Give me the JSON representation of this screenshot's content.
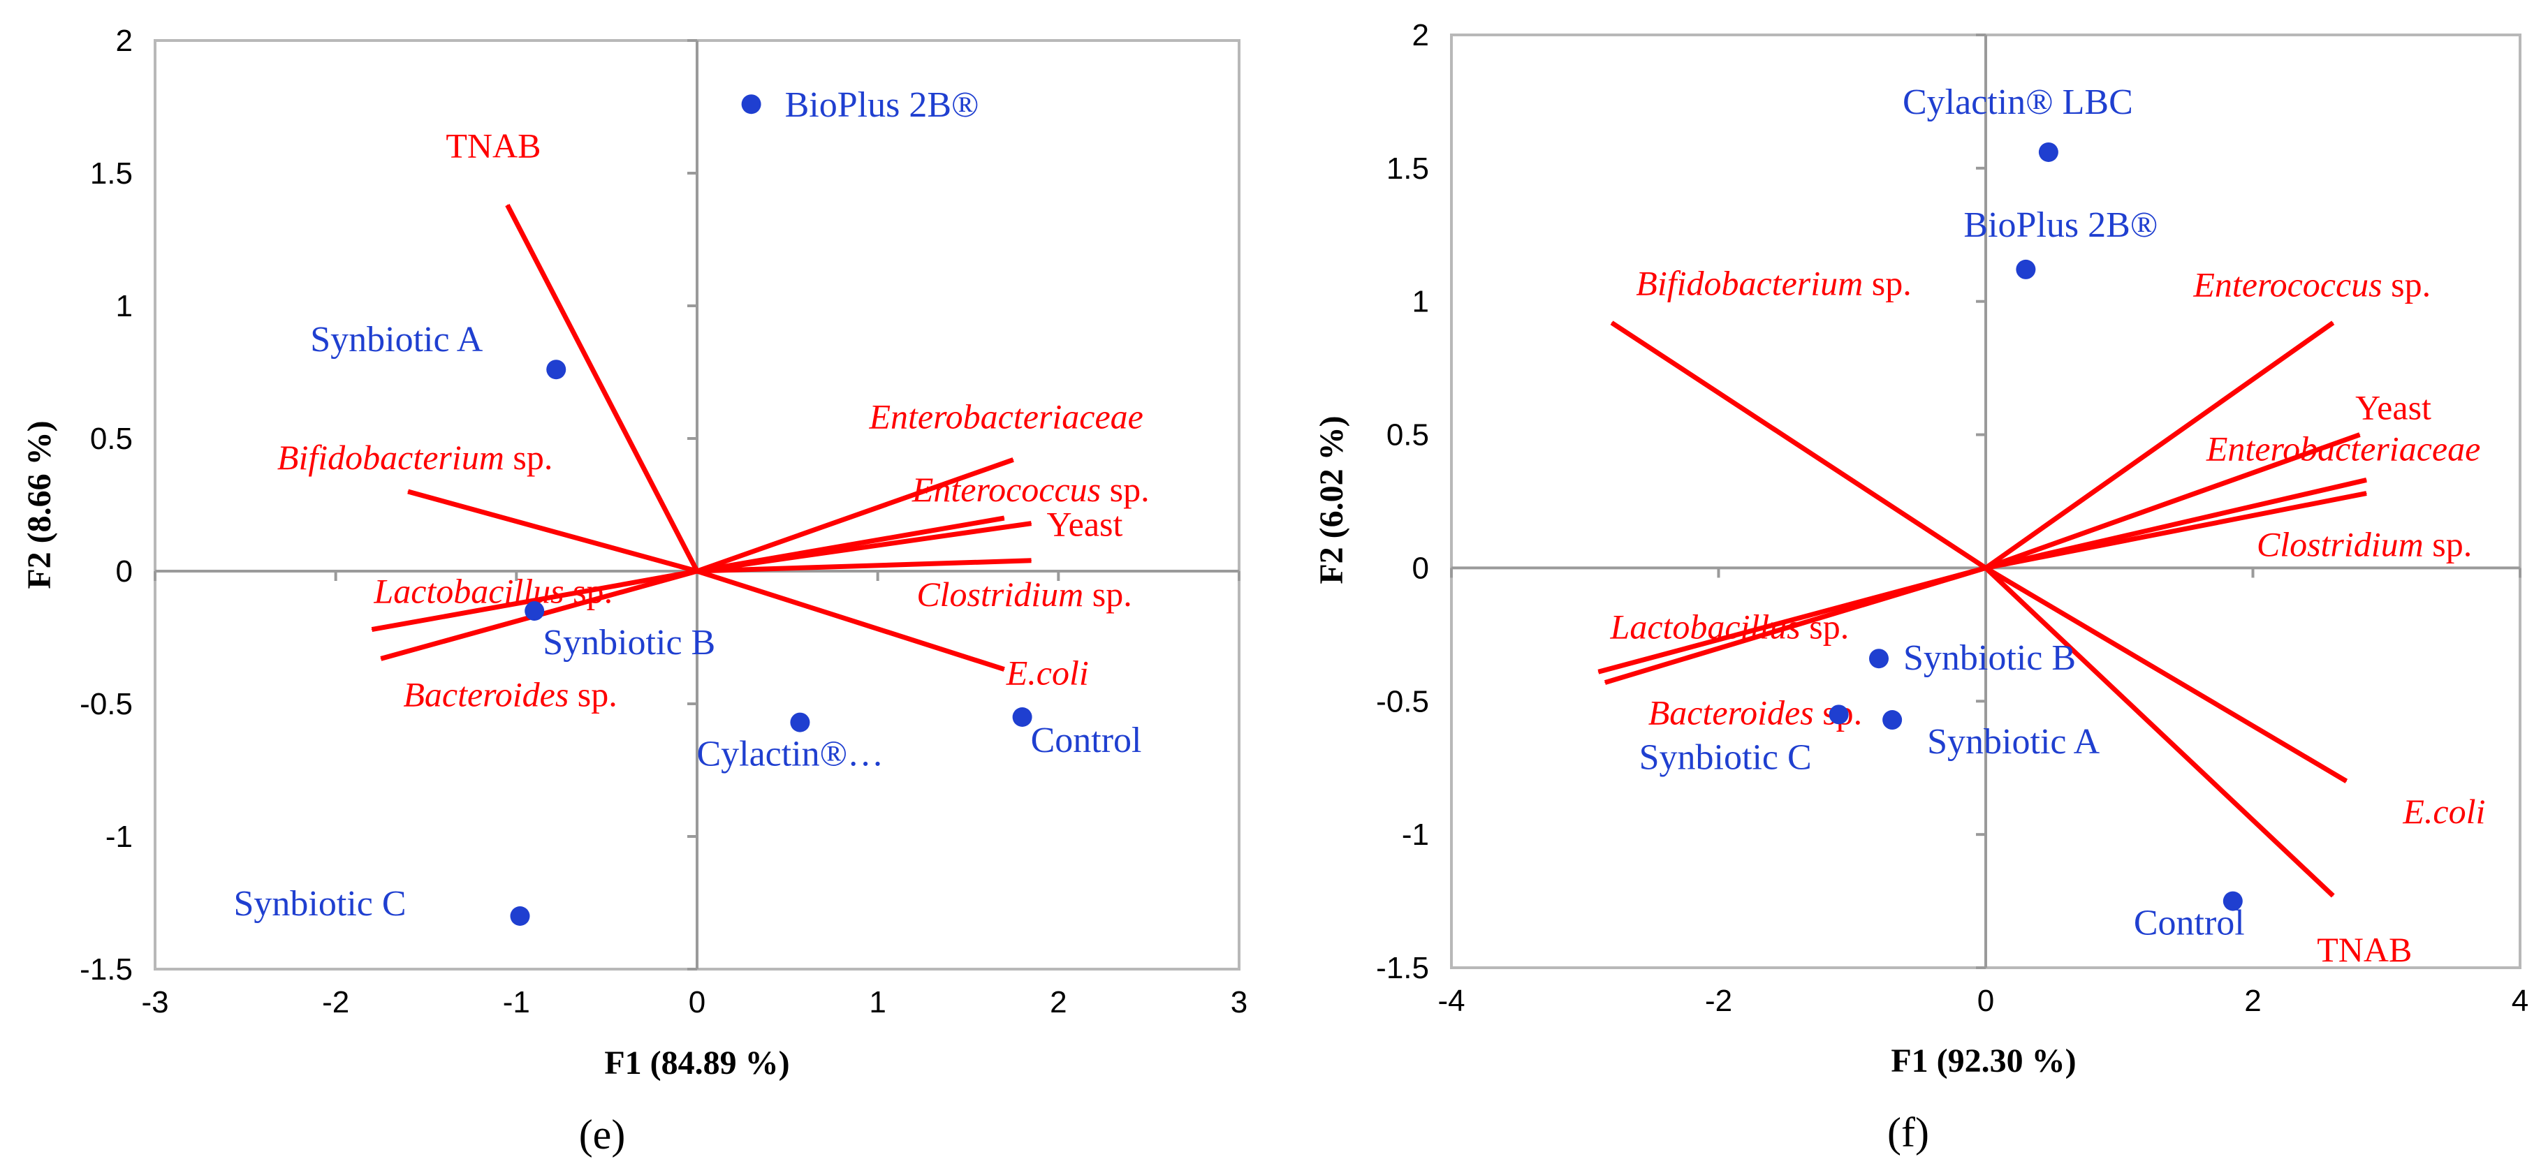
{
  "chart_data": [
    {
      "id": "e",
      "type": "scatter",
      "panel_label": "(e)",
      "xlabel": "F1 (84.89 %)",
      "ylabel": "F2 (8.66 %)",
      "xlim": [
        -3,
        3
      ],
      "ylim": [
        -1.5,
        2
      ],
      "xticks": [
        -3,
        -2,
        -1,
        0,
        1,
        2,
        3
      ],
      "yticks": [
        -1.5,
        -1,
        -0.5,
        0,
        0.5,
        1,
        1.5,
        2
      ],
      "xtick_labels": [
        "-3",
        "-2",
        "-1",
        "0",
        "1",
        "2",
        "3"
      ],
      "ytick_labels": [
        "-1.5",
        "-1",
        "-0.5",
        "0",
        "0.5",
        "1",
        "1.5",
        "2"
      ],
      "vector_color": "#ff0000",
      "point_color": "#1f3fd0",
      "variables": [
        {
          "name": "TNAB",
          "x": -1.05,
          "y": 1.38,
          "label": [
            {
              "text": "TNAB",
              "italic": false
            }
          ]
        },
        {
          "name": "Bifidobacterium sp.",
          "x": -1.6,
          "y": 0.3,
          "label": [
            {
              "text": "Bifidobacterium",
              "italic": true
            },
            {
              "text": " sp.",
              "italic": false
            }
          ]
        },
        {
          "name": "Lactobacillus sp.",
          "x": -1.8,
          "y": -0.22,
          "label": [
            {
              "text": "Lactobacillus",
              "italic": true
            },
            {
              "text": " sp.",
              "italic": false
            }
          ]
        },
        {
          "name": "Bacteroides sp.",
          "x": -1.75,
          "y": -0.33,
          "label": [
            {
              "text": "Bacteroides",
              "italic": true
            },
            {
              "text": " sp.",
              "italic": false
            }
          ]
        },
        {
          "name": "Enterobacteriaceae",
          "x": 1.75,
          "y": 0.42,
          "label": [
            {
              "text": "Enterobacteriaceae",
              "italic": true
            }
          ]
        },
        {
          "name": "Enterococcus sp.",
          "x": 1.7,
          "y": 0.2,
          "label": [
            {
              "text": "Enterococcus",
              "italic": true
            },
            {
              "text": " sp.",
              "italic": false
            }
          ]
        },
        {
          "name": "Yeast",
          "x": 1.85,
          "y": 0.18,
          "label": [
            {
              "text": "Yeast",
              "italic": false
            }
          ]
        },
        {
          "name": "Clostridium sp.",
          "x": 1.85,
          "y": 0.04,
          "label": [
            {
              "text": "Clostridium",
              "italic": true
            },
            {
              "text": " sp.",
              "italic": false
            }
          ]
        },
        {
          "name": "E.coli",
          "x": 1.7,
          "y": -0.37,
          "label": [
            {
              "text": "E.coli",
              "italic": true
            }
          ]
        }
      ],
      "observations": [
        {
          "name": "BioPlus 2B®",
          "x": 0.3,
          "y": 1.76
        },
        {
          "name": "Synbiotic A",
          "x": -0.78,
          "y": 0.76
        },
        {
          "name": "Synbiotic B",
          "x": -0.9,
          "y": -0.15
        },
        {
          "name": "Cylactin®…",
          "x": 0.57,
          "y": -0.57
        },
        {
          "name": "Control",
          "x": 1.8,
          "y": -0.55
        },
        {
          "name": "Synbiotic C",
          "x": -0.98,
          "y": -1.3
        }
      ]
    },
    {
      "id": "f",
      "type": "scatter",
      "panel_label": "(f)",
      "xlabel": "F1 (92.30 %)",
      "ylabel": "F2 (6.02 %)",
      "xlim": [
        -4,
        4
      ],
      "ylim": [
        -1.5,
        2
      ],
      "xticks": [
        -4,
        -2,
        0,
        2,
        4
      ],
      "yticks": [
        -1.5,
        -1,
        -0.5,
        0,
        0.5,
        1,
        1.5,
        2
      ],
      "xtick_labels": [
        "-4",
        "-2",
        "0",
        "2",
        "4"
      ],
      "ytick_labels": [
        "-1.5",
        "-1",
        "-0.5",
        "0",
        "0.5",
        "1",
        "1.5",
        "2"
      ],
      "vector_color": "#ff0000",
      "point_color": "#1f3fd0",
      "variables": [
        {
          "name": "Bifidobacterium sp.",
          "x": -2.8,
          "y": 0.92,
          "label": [
            {
              "text": "Bifidobacterium",
              "italic": true
            },
            {
              "text": " sp.",
              "italic": false
            }
          ]
        },
        {
          "name": "Enterococcus sp.",
          "x": 2.6,
          "y": 0.92,
          "label": [
            {
              "text": "Enterococcus",
              "italic": true
            },
            {
              "text": " sp.",
              "italic": false
            }
          ]
        },
        {
          "name": "Yeast",
          "x": 2.8,
          "y": 0.5,
          "label": [
            {
              "text": "Yeast",
              "italic": false
            }
          ]
        },
        {
          "name": "Enterobacteriaceae",
          "x": 2.85,
          "y": 0.33,
          "label": [
            {
              "text": "Enterobacteriaceae",
              "italic": true
            }
          ]
        },
        {
          "name": "Clostridium sp.",
          "x": 2.85,
          "y": 0.28,
          "label": [
            {
              "text": "Clostridium",
              "italic": true
            },
            {
              "text": " sp.",
              "italic": false
            }
          ]
        },
        {
          "name": "Lactobacillus sp.",
          "x": -2.9,
          "y": -0.39,
          "label": [
            {
              "text": "Lactobacillus",
              "italic": true
            },
            {
              "text": " sp.",
              "italic": false
            }
          ]
        },
        {
          "name": "Bacteroides sp.",
          "x": -2.85,
          "y": -0.43,
          "label": [
            {
              "text": "Bacteroides",
              "italic": true
            },
            {
              "text": " sp.",
              "italic": false
            }
          ]
        },
        {
          "name": "E.coli",
          "x": 2.7,
          "y": -0.8,
          "label": [
            {
              "text": "E.coli",
              "italic": true
            }
          ]
        },
        {
          "name": "TNAB",
          "x": 2.6,
          "y": -1.23,
          "label": [
            {
              "text": "TNAB",
              "italic": false
            }
          ]
        }
      ],
      "observations": [
        {
          "name": "Cylactin® LBC",
          "x": 0.47,
          "y": 1.56
        },
        {
          "name": "BioPlus 2B®",
          "x": 0.3,
          "y": 1.12
        },
        {
          "name": "Synbiotic B",
          "x": -0.8,
          "y": -0.34
        },
        {
          "name": "Synbiotic C",
          "x": -1.1,
          "y": -0.55
        },
        {
          "name": "Synbiotic A",
          "x": -0.7,
          "y": -0.57
        },
        {
          "name": "Control",
          "x": 1.85,
          "y": -1.25
        }
      ]
    }
  ]
}
